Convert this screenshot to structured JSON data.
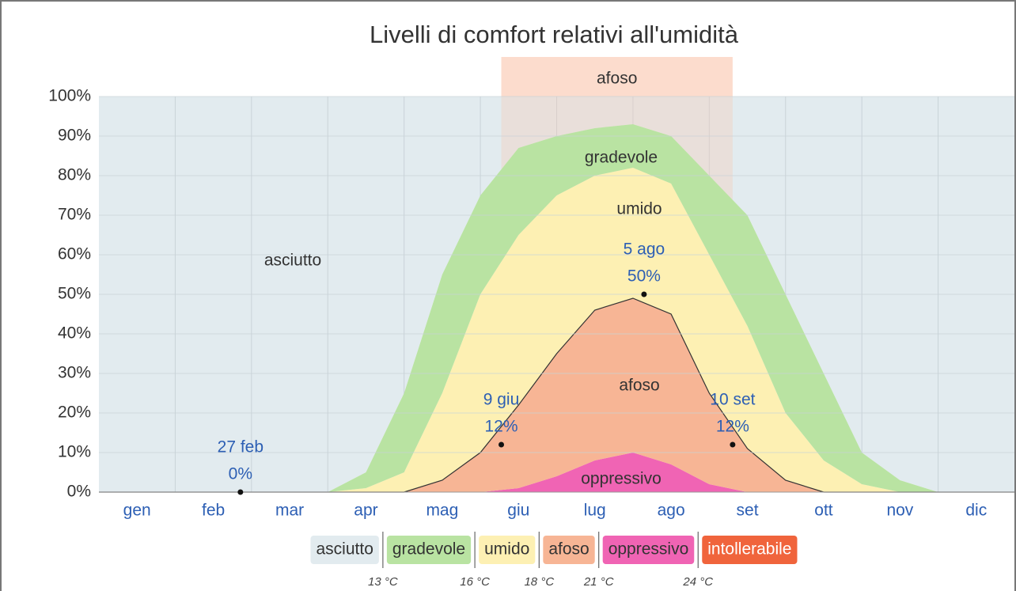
{
  "chart_data": {
    "type": "stacked_area",
    "title": "Livelli di comfort relativi all'umidità",
    "categories": [
      null,
      "gen",
      null,
      "feb",
      null,
      "mar",
      null,
      "apr",
      null,
      "mag",
      null,
      "giu",
      null,
      "lug",
      null,
      "ago",
      null,
      "set",
      null,
      "ott",
      null,
      "nov",
      null,
      "dic",
      null
    ],
    "series": [
      {
        "name": "asciutto",
        "color": "#e2ebef",
        "values": [
          100,
          100,
          100,
          100,
          100,
          100,
          100,
          95,
          75,
          45,
          25,
          13,
          10,
          8,
          7,
          10,
          20,
          30,
          50,
          70,
          90,
          97,
          100,
          100,
          100
        ]
      },
      {
        "name": "gradevole",
        "color": "#b9e3a2",
        "values": [
          0,
          0,
          0,
          0,
          0,
          0,
          0,
          4,
          20,
          30,
          25,
          22,
          15,
          12,
          11,
          12,
          20,
          28,
          30,
          22,
          8,
          3,
          0,
          0,
          0
        ]
      },
      {
        "name": "umido",
        "color": "#fdf0b3",
        "values": [
          0,
          0,
          0,
          0,
          0,
          0,
          0,
          1,
          5,
          22,
          40,
          43,
          40,
          34,
          33,
          33,
          35,
          31,
          17,
          8,
          2,
          0,
          0,
          0,
          0
        ]
      },
      {
        "name": "afoso",
        "color": "#f7b595",
        "stroke": "#333333",
        "values": [
          0,
          0,
          0,
          0,
          0,
          0,
          0,
          0,
          0,
          3,
          10,
          21,
          31,
          38,
          39,
          38,
          23,
          11,
          3,
          0,
          0,
          0,
          0,
          0,
          0
        ]
      },
      {
        "name": "oppressivo",
        "color": "#f064b4",
        "values": [
          0,
          0,
          0,
          0,
          0,
          0,
          0,
          0,
          0,
          0,
          0,
          1,
          4,
          8,
          10,
          7,
          2,
          0,
          0,
          0,
          0,
          0,
          0,
          0,
          0
        ]
      },
      {
        "name": "intollerabile",
        "color": "#f0643c",
        "values": [
          0,
          0,
          0,
          0,
          0,
          0,
          0,
          0,
          0,
          0,
          0,
          0,
          0,
          0,
          0,
          0,
          0,
          0,
          0,
          0,
          0,
          0,
          0,
          0,
          0
        ]
      }
    ],
    "ylim": [
      0,
      100
    ],
    "yticks": [
      {
        "value": 0,
        "label": "0%"
      },
      {
        "value": 10,
        "label": "10%"
      },
      {
        "value": 20,
        "label": "20%"
      },
      {
        "value": 30,
        "label": "30%"
      },
      {
        "value": 40,
        "label": "40%"
      },
      {
        "value": 50,
        "label": "50%"
      },
      {
        "value": 60,
        "label": "60%"
      },
      {
        "value": 70,
        "label": "70%"
      },
      {
        "value": 80,
        "label": "80%"
      },
      {
        "value": 90,
        "label": "90%"
      },
      {
        "value": 100,
        "label": "100%"
      }
    ],
    "grid": true,
    "annotations": [
      {
        "text": "27 feb",
        "value": 0,
        "value_label": "0%"
      },
      {
        "text": "9 giu",
        "value": 12,
        "value_label": "12%"
      },
      {
        "text": "5 ago",
        "value": 50,
        "value_label": "50%"
      },
      {
        "text": "10 set",
        "value": 12,
        "value_label": "12%"
      }
    ],
    "highlight": {
      "label": "afoso",
      "from": "9 giu",
      "to": "10 set"
    },
    "legend_thresholds": [
      "13 °C",
      "16 °C",
      "18 °C",
      "21 °C",
      "24 °C"
    ]
  }
}
